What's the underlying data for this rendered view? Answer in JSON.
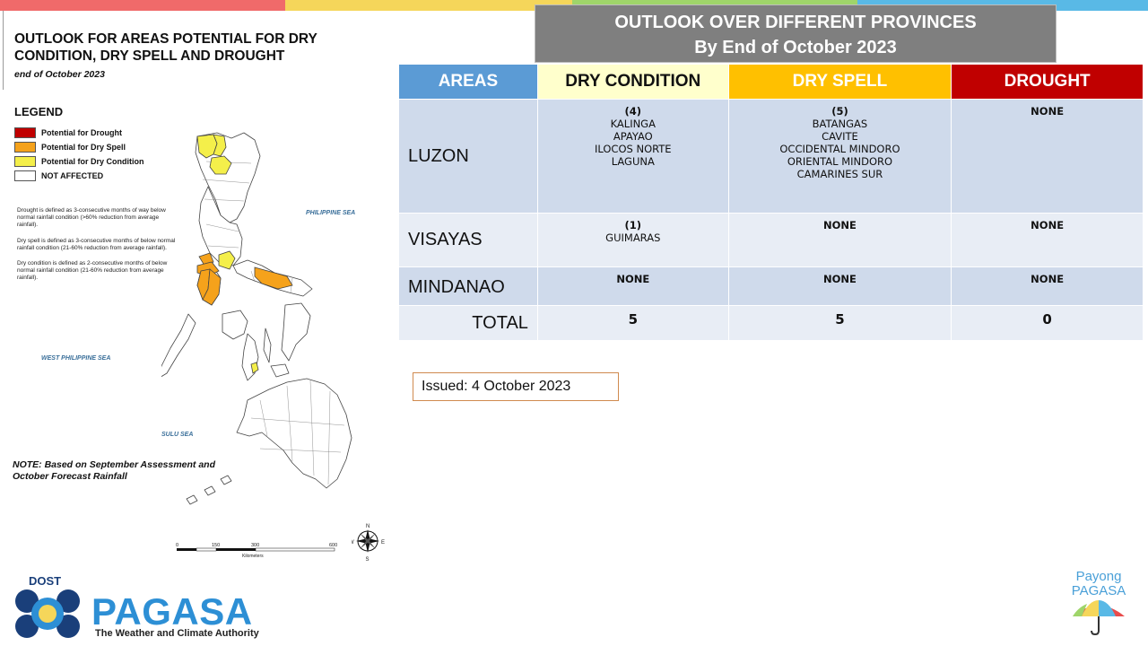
{
  "colors": {
    "strip": [
      "#f06a6a",
      "#f5d65a",
      "#9fd56a",
      "#59b9e6"
    ],
    "drought": "#c00000",
    "dry_spell": "#ffc000",
    "dry_condition": "#ffff99",
    "areas_header": "#5b9bd5",
    "drought_header": "#c00000",
    "dry_spell_header": "#ffc000",
    "dry_condition_header": "#ffffcc",
    "map_dry_spell": "#f5a21b",
    "map_dry_condition": "#f4ef4a"
  },
  "map": {
    "title": "OUTLOOK FOR AREAS POTENTIAL FOR DRY CONDITION, DRY SPELL AND DROUGHT",
    "subtitle": "end of October 2023",
    "legend_title": "LEGEND",
    "legend": [
      {
        "label": "Potential for Drought",
        "color": "#c00000"
      },
      {
        "label": "Potential for Dry Spell",
        "color": "#f5a21b"
      },
      {
        "label": "Potential for Dry Condition",
        "color": "#f4ef4a"
      },
      {
        "label": "NOT AFFECTED",
        "color": "#ffffff"
      }
    ],
    "definitions": [
      "Drought is defined as 3-consecutive months of way below normal rainfall condition (>60% reduction from average rainfall).",
      "Dry spell is defined as 3-consecutive months of below normal rainfall condition (21-60% reduction from average rainfall).",
      "Dry condition is defined as 2-consecutive months of below normal rainfall condition (21-60% reduction from average rainfall)."
    ],
    "seas": {
      "philippine": "PHILIPPINE SEA",
      "west_philippine": "WEST PHILIPPINE SEA",
      "sulu": "SULU SEA"
    },
    "note": "NOTE: Based on September Assessment and October Forecast Rainfall",
    "scale": {
      "ticks": [
        "0",
        "150",
        "300",
        "600"
      ],
      "unit": "Kilometers"
    },
    "compass": {
      "n": "N",
      "s": "S",
      "e": "E",
      "w": "W"
    }
  },
  "outlook": {
    "title_line1": "OUTLOOK OVER DIFFERENT PROVINCES",
    "title_line2": "By End of October 2023",
    "headers": {
      "areas": "AREAS",
      "dry_condition": "DRY CONDITION",
      "dry_spell": "DRY SPELL",
      "drought": "DROUGHT"
    },
    "rows": [
      {
        "area": "LUZON",
        "dry_condition": {
          "count": "(4)",
          "provinces": [
            "KALINGA",
            "APAYAO",
            "ILOCOS NORTE",
            "LAGUNA"
          ]
        },
        "dry_spell": {
          "count": "(5)",
          "provinces": [
            "BATANGAS",
            "CAVITE",
            "OCCIDENTAL MINDORO",
            "ORIENTAL MINDORO",
            "CAMARINES SUR"
          ]
        },
        "drought": "NONE"
      },
      {
        "area": "VISAYAS",
        "dry_condition": {
          "count": "(1)",
          "provinces": [
            "GUIMARAS"
          ]
        },
        "dry_spell": "NONE",
        "drought": "NONE"
      },
      {
        "area": "MINDANAO",
        "dry_condition": "NONE",
        "dry_spell": "NONE",
        "drought": "NONE"
      }
    ],
    "total": {
      "label": "TOTAL",
      "dry_condition": "5",
      "dry_spell": "5",
      "drought": "0"
    },
    "issued": "Issued: 4 October 2023"
  },
  "logos": {
    "dost": "DOST",
    "pagasa": "PAGASA",
    "pagasa_tagline": "The Weather and Climate Authority",
    "payong_line1": "Payong",
    "payong_line2": "PAGASA"
  }
}
